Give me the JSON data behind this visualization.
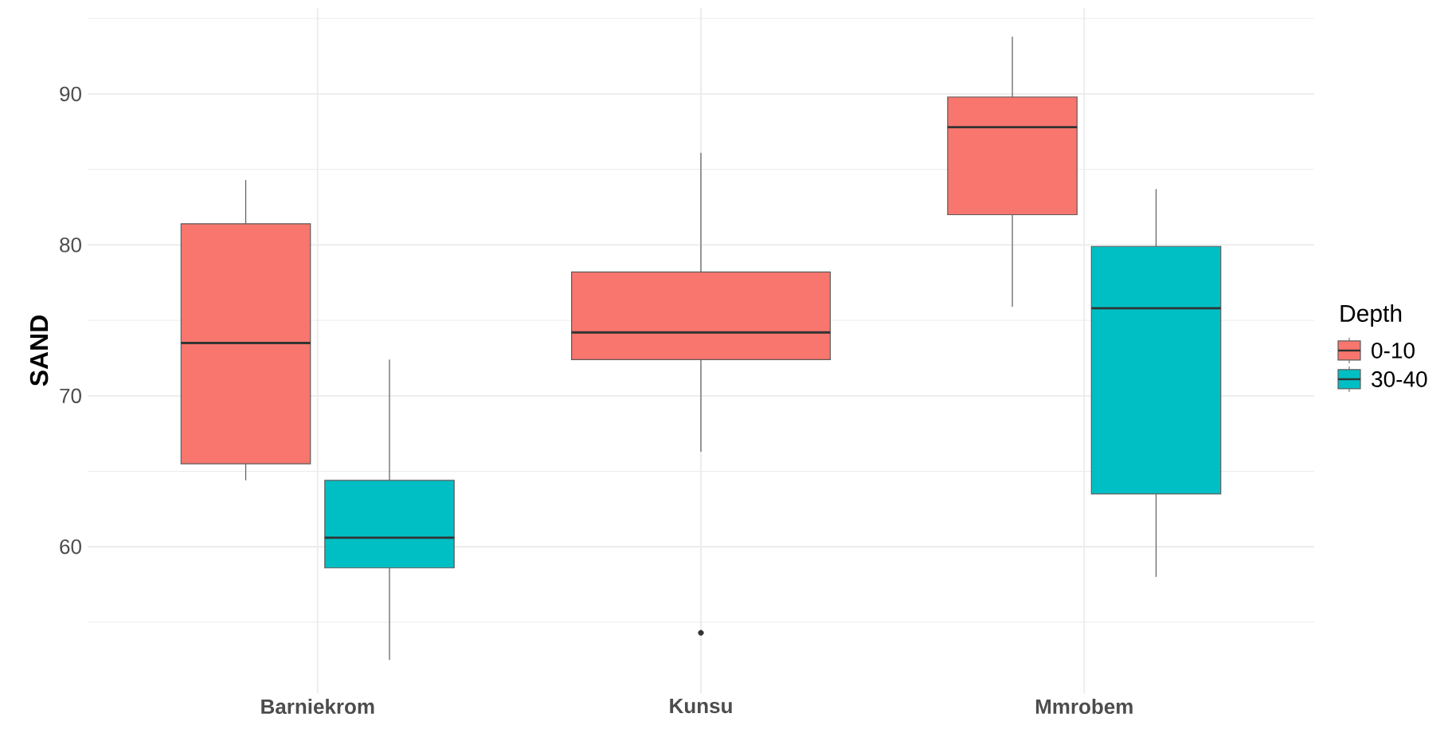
{
  "chart_data": {
    "type": "box",
    "ylabel": "SAND",
    "legend_title": "Depth",
    "categories": [
      "Barniekrom",
      "Kunsu",
      "Mmrobem"
    ],
    "ylim": [
      50.3,
      95.7
    ],
    "yticks": [
      60,
      70,
      80,
      90
    ],
    "grid": true,
    "legend": "right",
    "series": [
      {
        "name": "0-10",
        "color": "#f8766d",
        "boxes": [
          {
            "low": 64.4,
            "q1": 65.5,
            "median": 73.5,
            "q3": 81.4,
            "high": 84.3
          },
          {
            "low": 66.3,
            "q1": 72.4,
            "median": 74.2,
            "q3": 78.2,
            "high": 86.1,
            "outliers": [
              54.3
            ]
          },
          {
            "low": 75.9,
            "q1": 82.0,
            "median": 87.8,
            "q3": 89.8,
            "high": 93.8
          }
        ]
      },
      {
        "name": "30-40",
        "color": "#00bfc4",
        "boxes": [
          {
            "low": 52.5,
            "q1": 58.6,
            "median": 60.6,
            "q3": 64.4,
            "high": 72.4
          },
          null,
          {
            "low": 58.0,
            "q1": 63.5,
            "median": 75.8,
            "q3": 79.9,
            "high": 83.7
          }
        ]
      }
    ]
  }
}
